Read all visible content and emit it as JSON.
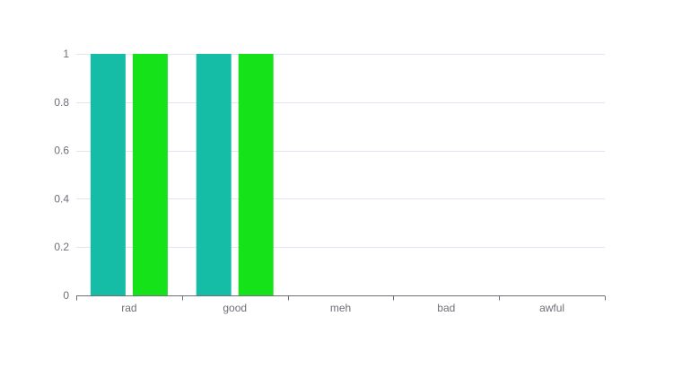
{
  "chart_data": {
    "type": "bar",
    "categories": [
      "rad",
      "good",
      "meh",
      "bad",
      "awful"
    ],
    "series": [
      {
        "values": [
          1,
          1,
          0,
          0,
          0
        ],
        "color": "#16bda6"
      },
      {
        "values": [
          1,
          1,
          0,
          0,
          0
        ],
        "color": "#16e21a"
      }
    ],
    "ylim": [
      0,
      1
    ],
    "yticks": [
      0,
      0.2,
      0.4,
      0.6,
      0.8,
      1
    ],
    "ytick_labels": [
      "0",
      "0.2",
      "0.4",
      "0.6",
      "0.8",
      "1"
    ],
    "grid": true,
    "legend": "none",
    "title": "",
    "xlabel": "",
    "ylabel": ""
  }
}
